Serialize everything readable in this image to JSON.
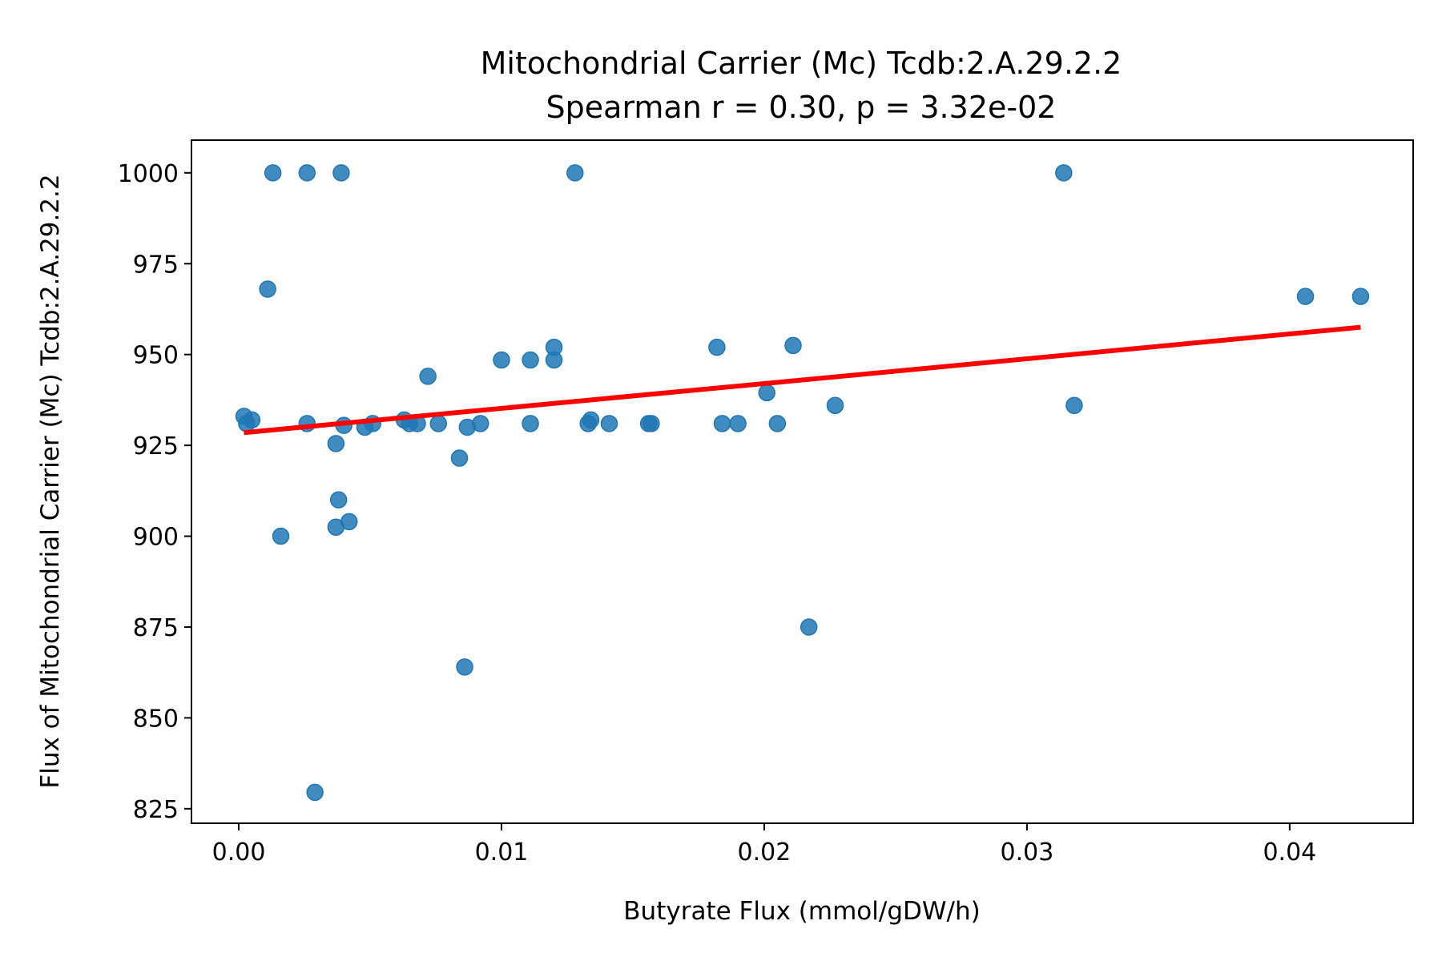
{
  "chart_data": {
    "type": "scatter",
    "title": "Mitochondrial Carrier (Mc) Tcdb:2.A.29.2.2",
    "subtitle": "Spearman r = 0.30, p = 3.32e-02",
    "xlabel": "Butyrate Flux (mmol/gDW/h)",
    "ylabel": "Flux of Mitochondrial Carrier (Mc) Tcdb:2.A.29.2.2",
    "xlim": [
      -0.0018,
      0.0447
    ],
    "ylim": [
      821,
      1009
    ],
    "xticks": [
      0.0,
      0.01,
      0.02,
      0.03,
      0.04
    ],
    "xtick_labels": [
      "0.00",
      "0.01",
      "0.02",
      "0.03",
      "0.04"
    ],
    "yticks": [
      825,
      850,
      875,
      900,
      925,
      950,
      975,
      1000
    ],
    "ytick_labels": [
      "825",
      "850",
      "875",
      "900",
      "925",
      "950",
      "975",
      "1000"
    ],
    "grid": false,
    "point_color": "#1f77b4",
    "line_color": "#ff0000",
    "points": [
      {
        "x": 0.0013,
        "y": 1000
      },
      {
        "x": 0.0026,
        "y": 1000
      },
      {
        "x": 0.0039,
        "y": 1000
      },
      {
        "x": 0.0128,
        "y": 1000
      },
      {
        "x": 0.0314,
        "y": 1000
      },
      {
        "x": 0.0011,
        "y": 968
      },
      {
        "x": 0.0406,
        "y": 966
      },
      {
        "x": 0.0427,
        "y": 966
      },
      {
        "x": 0.012,
        "y": 952
      },
      {
        "x": 0.0182,
        "y": 952
      },
      {
        "x": 0.0211,
        "y": 952.5
      },
      {
        "x": 0.01,
        "y": 948.5
      },
      {
        "x": 0.0111,
        "y": 948.5
      },
      {
        "x": 0.012,
        "y": 948.5
      },
      {
        "x": 0.0072,
        "y": 944
      },
      {
        "x": 0.0201,
        "y": 939.5
      },
      {
        "x": 0.0227,
        "y": 936
      },
      {
        "x": 0.0318,
        "y": 936
      },
      {
        "x": 0.0002,
        "y": 933
      },
      {
        "x": 0.0003,
        "y": 931
      },
      {
        "x": 0.0005,
        "y": 932
      },
      {
        "x": 0.0026,
        "y": 931
      },
      {
        "x": 0.004,
        "y": 930.5
      },
      {
        "x": 0.0048,
        "y": 930
      },
      {
        "x": 0.0051,
        "y": 931
      },
      {
        "x": 0.0063,
        "y": 932
      },
      {
        "x": 0.0065,
        "y": 931
      },
      {
        "x": 0.0068,
        "y": 931
      },
      {
        "x": 0.0076,
        "y": 931
      },
      {
        "x": 0.0087,
        "y": 930
      },
      {
        "x": 0.0092,
        "y": 931
      },
      {
        "x": 0.0111,
        "y": 931
      },
      {
        "x": 0.0133,
        "y": 931
      },
      {
        "x": 0.0134,
        "y": 932
      },
      {
        "x": 0.0141,
        "y": 931
      },
      {
        "x": 0.0156,
        "y": 931
      },
      {
        "x": 0.0157,
        "y": 931
      },
      {
        "x": 0.0184,
        "y": 931
      },
      {
        "x": 0.019,
        "y": 931
      },
      {
        "x": 0.0205,
        "y": 931
      },
      {
        "x": 0.0037,
        "y": 925.5
      },
      {
        "x": 0.0084,
        "y": 921.5
      },
      {
        "x": 0.0038,
        "y": 910
      },
      {
        "x": 0.0037,
        "y": 902.5
      },
      {
        "x": 0.0042,
        "y": 904
      },
      {
        "x": 0.0016,
        "y": 900
      },
      {
        "x": 0.0217,
        "y": 875
      },
      {
        "x": 0.0086,
        "y": 864
      },
      {
        "x": 0.0029,
        "y": 829.5
      }
    ],
    "regression_line": {
      "x": [
        0.0002,
        0.0427
      ],
      "y": [
        928.5,
        957.5
      ]
    }
  }
}
